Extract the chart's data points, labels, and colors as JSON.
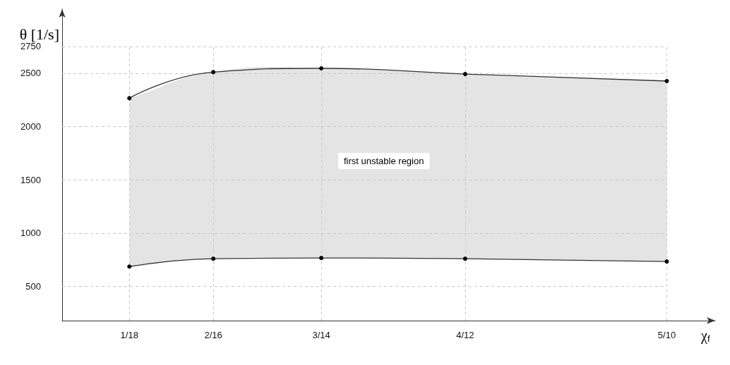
{
  "chart_data": {
    "type": "line",
    "xlabel": "χ$_{f}$",
    "ylabel": "θ [1/s]",
    "x": [
      0.0556,
      0.125,
      0.2143,
      0.3333,
      0.5
    ],
    "series": [
      {
        "color": "#333333",
        "values": [
          687,
          760,
          767,
          760,
          734
        ]
      },
      {
        "type": "area",
        "color": "#333333",
        "values": [
          2265,
          2510,
          2545,
          2492,
          2426
        ]
      }
    ],
    "xlim": [
      0,
      0.54
    ],
    "ylim": [
      180,
      3100
    ],
    "xticks": [
      {
        "value": 0.0556,
        "label": "1/18"
      },
      {
        "value": 0.125,
        "label": "2/16"
      },
      {
        "value": 0.2143,
        "label": "3/14"
      },
      {
        "value": 0.3333,
        "label": "4/12"
      },
      {
        "value": 0.5,
        "label": "5/10"
      }
    ],
    "yticks": [
      500,
      1000,
      1500,
      2000,
      2500,
      2750
    ],
    "grid": true,
    "marker": "circle",
    "line_style": "solid",
    "annotations": [
      "first unstable region"
    ]
  }
}
